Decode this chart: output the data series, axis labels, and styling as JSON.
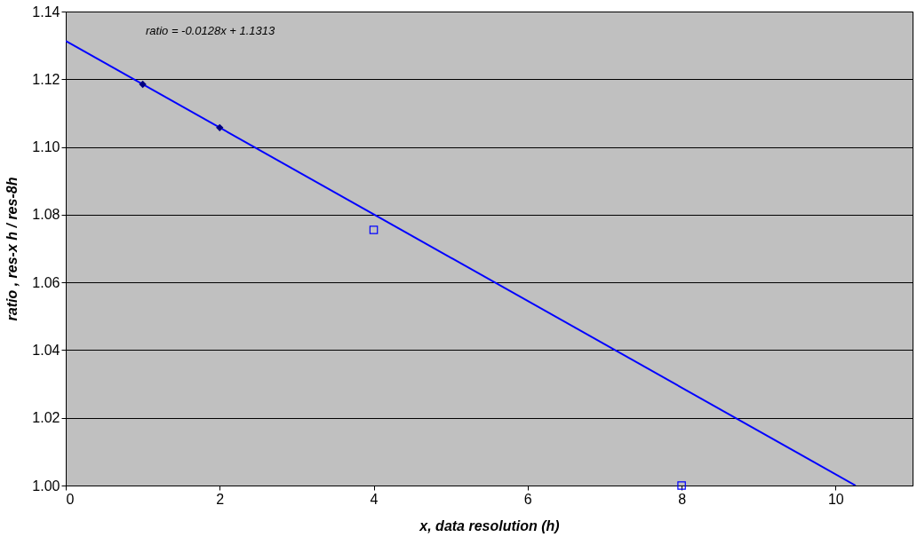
{
  "chart_data": {
    "type": "scatter",
    "xlabel": "x,  data resolution (h)",
    "ylabel": "ratio ,  res-x h / res-8h",
    "series": [
      {
        "type": "line",
        "color": "#0000ff",
        "x": [
          0,
          10.26
        ],
        "values": [
          1.1313,
          1.0
        ],
        "marker": "none",
        "line_style": "solid"
      },
      {
        "type": "scatter",
        "color": "#000080",
        "x": [
          1,
          2
        ],
        "values": [
          1.1185,
          1.1057
        ],
        "marker": "diamond"
      },
      {
        "type": "scatter",
        "color": "#0000ff",
        "x": [
          4,
          8
        ],
        "values": [
          1.0755,
          1.0
        ],
        "marker": "square"
      }
    ],
    "annotations": [
      "ratio = -0.0128x + 1.1313"
    ],
    "xlim": [
      0,
      11
    ],
    "xticks": [
      0,
      2,
      4,
      6,
      8,
      10
    ],
    "ylim": [
      1.0,
      1.14
    ],
    "yticks": [
      {
        "value": 1.0,
        "label": "1.00"
      },
      {
        "value": 1.02,
        "label": "1.02"
      },
      {
        "value": 1.04,
        "label": "1.04"
      },
      {
        "value": 1.06,
        "label": "1.06"
      },
      {
        "value": 1.08,
        "label": "1.08"
      },
      {
        "value": 1.1,
        "label": "1.10"
      },
      {
        "value": 1.12,
        "label": "1.12"
      },
      {
        "value": 1.14,
        "label": "1.14"
      }
    ],
    "grid": "y",
    "legend": false
  }
}
